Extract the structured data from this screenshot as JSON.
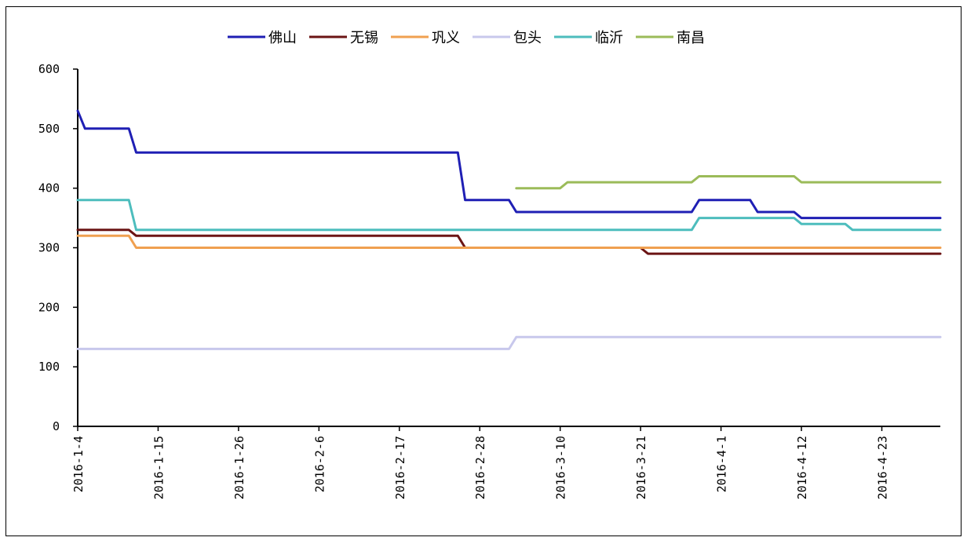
{
  "chart_data": {
    "type": "line",
    "title": "",
    "xlabel": "",
    "ylabel": "",
    "ylim": [
      0,
      600
    ],
    "yticks": [
      "0",
      "100",
      "200",
      "300",
      "400",
      "500",
      "600"
    ],
    "x_start": "2016-1-4",
    "x_end": "2016-5-1",
    "xtick_labels": [
      "2016-1-4",
      "2016-1-15",
      "2016-1-26",
      "2016-2-6",
      "2016-2-17",
      "2016-2-28",
      "2016-3-10",
      "2016-3-21",
      "2016-4-1",
      "2016-4-12",
      "2016-4-23"
    ],
    "legend_position": "top",
    "grid": false,
    "series": [
      {
        "name": "佛山",
        "color": "#1f1fb4",
        "points": [
          [
            "2016-1-4",
            530
          ],
          [
            "2016-1-5",
            500
          ],
          [
            "2016-1-11",
            500
          ],
          [
            "2016-1-12",
            460
          ],
          [
            "2016-2-25",
            460
          ],
          [
            "2016-2-26",
            380
          ],
          [
            "2016-3-3",
            380
          ],
          [
            "2016-3-4",
            360
          ],
          [
            "2016-3-28",
            360
          ],
          [
            "2016-3-29",
            380
          ],
          [
            "2016-4-5",
            380
          ],
          [
            "2016-4-6",
            360
          ],
          [
            "2016-4-11",
            360
          ],
          [
            "2016-4-12",
            350
          ],
          [
            "2016-5-1",
            350
          ]
        ]
      },
      {
        "name": "无锡",
        "color": "#6b1414",
        "points": [
          [
            "2016-1-4",
            330
          ],
          [
            "2016-1-11",
            330
          ],
          [
            "2016-1-12",
            320
          ],
          [
            "2016-2-25",
            320
          ],
          [
            "2016-2-26",
            300
          ],
          [
            "2016-3-21",
            300
          ],
          [
            "2016-3-22",
            290
          ],
          [
            "2016-5-1",
            290
          ]
        ]
      },
      {
        "name": "巩义",
        "color": "#f0a050",
        "points": [
          [
            "2016-1-4",
            320
          ],
          [
            "2016-1-11",
            320
          ],
          [
            "2016-1-12",
            300
          ],
          [
            "2016-5-1",
            300
          ]
        ]
      },
      {
        "name": "包头",
        "color": "#c8c8ec",
        "points": [
          [
            "2016-1-4",
            130
          ],
          [
            "2016-3-3",
            130
          ],
          [
            "2016-3-4",
            150
          ],
          [
            "2016-5-1",
            150
          ]
        ]
      },
      {
        "name": "临沂",
        "color": "#4dbdbd",
        "points": [
          [
            "2016-1-4",
            380
          ],
          [
            "2016-1-11",
            380
          ],
          [
            "2016-1-12",
            330
          ],
          [
            "2016-3-28",
            330
          ],
          [
            "2016-3-29",
            350
          ],
          [
            "2016-4-11",
            350
          ],
          [
            "2016-4-12",
            340
          ],
          [
            "2016-4-18",
            340
          ],
          [
            "2016-4-19",
            330
          ],
          [
            "2016-5-1",
            330
          ]
        ]
      },
      {
        "name": "南昌",
        "color": "#9bbb59",
        "points": [
          [
            "2016-3-4",
            400
          ],
          [
            "2016-3-10",
            400
          ],
          [
            "2016-3-11",
            410
          ],
          [
            "2016-3-28",
            410
          ],
          [
            "2016-3-29",
            420
          ],
          [
            "2016-4-11",
            420
          ],
          [
            "2016-4-12",
            410
          ],
          [
            "2016-5-1",
            410
          ]
        ]
      }
    ]
  }
}
